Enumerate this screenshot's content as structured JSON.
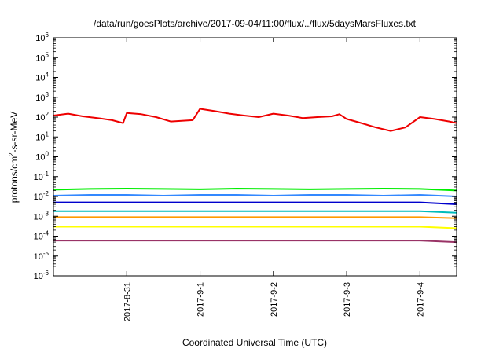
{
  "chart_data": {
    "type": "line",
    "title": "/data/run/goesPlots/archive/2017-09-04/11:00/flux/../flux/5daysMarsFluxes.txt",
    "xlabel": "Coordinated Universal Time (UTC)",
    "ylabel_parts": {
      "main": "protons/cm",
      "sup": "2",
      "rest": "-s-sr-MeV"
    },
    "yscale": "log",
    "ylim": [
      -6,
      6
    ],
    "yticks": [
      {
        "exp": -6,
        "base": "10",
        "sup": "-6"
      },
      {
        "exp": -5,
        "base": "10",
        "sup": "-5"
      },
      {
        "exp": -4,
        "base": "10",
        "sup": "-4"
      },
      {
        "exp": -3,
        "base": "10",
        "sup": "-3"
      },
      {
        "exp": -2,
        "base": "10",
        "sup": "-2"
      },
      {
        "exp": -1,
        "base": "10",
        "sup": "-1"
      },
      {
        "exp": 0,
        "base": "10",
        "sup": "0"
      },
      {
        "exp": 1,
        "base": "10",
        "sup": "1"
      },
      {
        "exp": 2,
        "base": "10",
        "sup": "2"
      },
      {
        "exp": 3,
        "base": "10",
        "sup": "3"
      },
      {
        "exp": 4,
        "base": "10",
        "sup": "4"
      },
      {
        "exp": 5,
        "base": "10",
        "sup": "5"
      },
      {
        "exp": 6,
        "base": "10",
        "sup": "6"
      }
    ],
    "xlim": [
      0,
      5.5
    ],
    "xticks": [
      {
        "value": 1.0,
        "label": "2017-8-31"
      },
      {
        "value": 2.0,
        "label": "2017-9-1"
      },
      {
        "value": 3.0,
        "label": "2017-9-2"
      },
      {
        "value": 4.0,
        "label": "2017-9-3"
      },
      {
        "value": 5.0,
        "label": "2017-9-4"
      }
    ],
    "grid": false,
    "legend": "none",
    "series": [
      {
        "color": "#ee0000",
        "x": [
          0.0,
          0.2,
          0.4,
          0.6,
          0.8,
          0.95,
          1.0,
          1.2,
          1.4,
          1.6,
          1.9,
          2.0,
          2.2,
          2.4,
          2.6,
          2.8,
          3.0,
          3.2,
          3.4,
          3.6,
          3.8,
          3.9,
          4.0,
          4.2,
          4.4,
          4.6,
          4.8,
          5.0,
          5.2,
          5.4,
          5.5
        ],
        "y": [
          120,
          150,
          110,
          90,
          70,
          50,
          160,
          140,
          100,
          60,
          70,
          260,
          200,
          150,
          120,
          100,
          150,
          120,
          90,
          100,
          110,
          140,
          80,
          50,
          30,
          20,
          30,
          100,
          80,
          60,
          50
        ]
      },
      {
        "color": "#00ee00",
        "x": [
          0.0,
          0.5,
          1.0,
          1.5,
          2.0,
          2.5,
          3.0,
          3.5,
          4.0,
          4.5,
          5.0,
          5.5
        ],
        "y": [
          0.022,
          0.024,
          0.025,
          0.024,
          0.023,
          0.025,
          0.024,
          0.023,
          0.024,
          0.025,
          0.024,
          0.02
        ]
      },
      {
        "color": "#3388ff",
        "x": [
          0.0,
          0.5,
          1.0,
          1.5,
          2.0,
          2.5,
          3.0,
          3.5,
          4.0,
          4.5,
          5.0,
          5.5
        ],
        "y": [
          0.011,
          0.012,
          0.012,
          0.011,
          0.012,
          0.012,
          0.011,
          0.012,
          0.012,
          0.011,
          0.012,
          0.01
        ]
      },
      {
        "color": "#0000cc",
        "x": [
          0.0,
          0.5,
          1.0,
          1.5,
          2.0,
          2.5,
          3.0,
          3.5,
          4.0,
          4.5,
          5.0,
          5.5
        ],
        "y": [
          0.005,
          0.005,
          0.005,
          0.005,
          0.005,
          0.005,
          0.005,
          0.005,
          0.005,
          0.005,
          0.005,
          0.004
        ]
      },
      {
        "color": "#00bbbb",
        "x": [
          0.0,
          0.5,
          1.0,
          1.5,
          2.0,
          2.5,
          3.0,
          3.5,
          4.0,
          4.5,
          5.0,
          5.5
        ],
        "y": [
          0.0018,
          0.0018,
          0.0018,
          0.0018,
          0.0018,
          0.0018,
          0.0018,
          0.0018,
          0.0018,
          0.0018,
          0.0018,
          0.0015
        ]
      },
      {
        "color": "#ff9900",
        "x": [
          0.0,
          0.5,
          1.0,
          1.5,
          2.0,
          2.5,
          3.0,
          3.5,
          4.0,
          4.5,
          5.0,
          5.5
        ],
        "y": [
          0.0009,
          0.0009,
          0.0009,
          0.0009,
          0.0009,
          0.0009,
          0.0009,
          0.0009,
          0.0009,
          0.0009,
          0.0009,
          0.0008
        ]
      },
      {
        "color": "#ffff00",
        "x": [
          0.0,
          0.5,
          1.0,
          1.5,
          2.0,
          2.5,
          3.0,
          3.5,
          4.0,
          4.5,
          5.0,
          5.5
        ],
        "y": [
          0.0003,
          0.0003,
          0.0003,
          0.0003,
          0.0003,
          0.0003,
          0.0003,
          0.0003,
          0.0003,
          0.0003,
          0.0003,
          0.00025
        ]
      },
      {
        "color": "#993366",
        "x": [
          0.0,
          0.5,
          1.0,
          1.5,
          2.0,
          2.5,
          3.0,
          3.5,
          4.0,
          4.5,
          5.0,
          5.5
        ],
        "y": [
          6e-05,
          6e-05,
          6e-05,
          6e-05,
          6e-05,
          6e-05,
          6e-05,
          6e-05,
          6e-05,
          6e-05,
          6e-05,
          5e-05
        ]
      }
    ]
  }
}
